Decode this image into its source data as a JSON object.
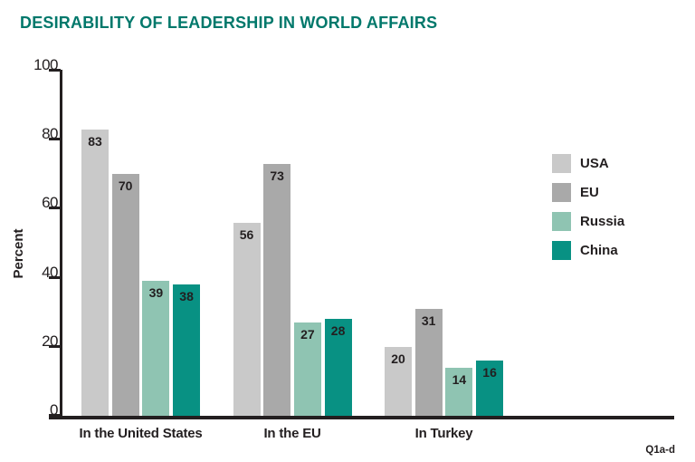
{
  "title": "DESIRABILITY OF LEADERSHIP IN WORLD AFFAIRS",
  "footnote": "Q1a-d",
  "colors": {
    "title_text": "#00786b",
    "axis": "#231f20",
    "tick_label": "#231f20",
    "value_label": "#231f20",
    "category_label": "#231f20",
    "legend_label": "#231f20",
    "background": "#ffffff"
  },
  "chart_data": {
    "type": "bar",
    "title": "DESIRABILITY OF LEADERSHIP IN WORLD AFFAIRS",
    "ylabel": "Percent",
    "xlabel": "",
    "ylim": [
      0,
      100
    ],
    "yticks": [
      0,
      20,
      40,
      60,
      80,
      100
    ],
    "grid": false,
    "legend_position": "right",
    "categories": [
      "In the United States",
      "In the EU",
      "In Turkey"
    ],
    "series": [
      {
        "name": "USA",
        "color": "#c9c9c9",
        "values": [
          83,
          56,
          20
        ]
      },
      {
        "name": "EU",
        "color": "#a9a9a9",
        "values": [
          70,
          73,
          31
        ]
      },
      {
        "name": "Russia",
        "color": "#8fc4b2",
        "values": [
          39,
          27,
          14
        ]
      },
      {
        "name": "China",
        "color": "#089183",
        "values": [
          38,
          28,
          16
        ]
      }
    ]
  }
}
